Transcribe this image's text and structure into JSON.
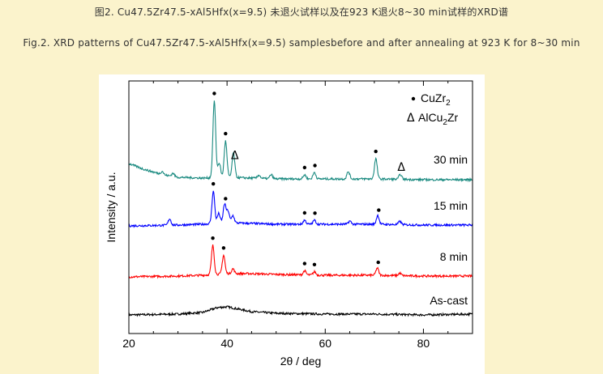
{
  "caption": {
    "cn": "图2. Cu47.5Zr47.5-xAl5Hfx(x=9.5) 未退火试样以及在923 K退火8~30 min试样的XRD谱",
    "en": "Fig.2. XRD patterns of Cu47.5Zr47.5-xAl5Hfx(x=9.5) samplesbefore and after annealing at 923 K for 8~30 min"
  },
  "chart_data": {
    "type": "line",
    "title": "",
    "xlabel": "2θ / deg",
    "ylabel": "Intensity / a.u.",
    "xlim": [
      20,
      90
    ],
    "xticks": [
      20,
      40,
      60,
      80
    ],
    "legend": [
      {
        "marker": "•",
        "label": "CuZr2"
      },
      {
        "marker": "Δ",
        "label": "AlCu2Zr"
      }
    ],
    "series": [
      {
        "name": "As-cast",
        "color": "#000000",
        "offset": 0,
        "base": [
          [
            20,
            5
          ],
          [
            30,
            6
          ],
          [
            35,
            8
          ],
          [
            38,
            14
          ],
          [
            40,
            15
          ],
          [
            45,
            9
          ],
          [
            50,
            7
          ],
          [
            60,
            6
          ],
          [
            70,
            6
          ],
          [
            80,
            5
          ],
          [
            90,
            6
          ]
        ],
        "peaks": [],
        "markers": []
      },
      {
        "name": "8 min",
        "color": "#ff0000",
        "offset": 50,
        "base": [
          [
            20,
            2
          ],
          [
            30,
            3
          ],
          [
            35,
            4
          ],
          [
            40,
            6
          ],
          [
            45,
            6
          ],
          [
            50,
            5
          ],
          [
            60,
            4
          ],
          [
            70,
            4
          ],
          [
            80,
            3
          ],
          [
            90,
            3
          ]
        ],
        "peaks": [
          [
            37.1,
            36
          ],
          [
            39.3,
            23
          ],
          [
            41.2,
            6
          ],
          [
            55.8,
            5
          ],
          [
            57.8,
            4
          ],
          [
            70.6,
            9
          ],
          [
            75.2,
            3
          ]
        ],
        "markers": [
          {
            "x": 37.1,
            "sym": "dot"
          },
          {
            "x": 39.3,
            "sym": "dot"
          },
          {
            "x": 55.8,
            "sym": "dot"
          },
          {
            "x": 57.8,
            "sym": "dot"
          },
          {
            "x": 70.8,
            "sym": "dot"
          }
        ]
      },
      {
        "name": "15 min",
        "color": "#0000ff",
        "offset": 113,
        "base": [
          [
            20,
            2
          ],
          [
            30,
            3
          ],
          [
            35,
            4
          ],
          [
            40,
            6
          ],
          [
            45,
            5
          ],
          [
            50,
            4
          ],
          [
            60,
            4
          ],
          [
            70,
            4
          ],
          [
            80,
            3
          ],
          [
            90,
            3
          ]
        ],
        "peaks": [
          [
            28.3,
            8
          ],
          [
            37.2,
            40
          ],
          [
            38.3,
            12
          ],
          [
            39.5,
            23
          ],
          [
            40.2,
            14
          ],
          [
            41.2,
            9
          ],
          [
            55.8,
            5
          ],
          [
            57.8,
            5
          ],
          [
            65,
            4
          ],
          [
            70.7,
            11
          ],
          [
            75.2,
            4
          ]
        ],
        "markers": [
          {
            "x": 37.2,
            "sym": "dot"
          },
          {
            "x": 39.7,
            "sym": "dot"
          },
          {
            "x": 55.8,
            "sym": "dot"
          },
          {
            "x": 57.9,
            "sym": "dot"
          },
          {
            "x": 70.9,
            "sym": "dot"
          }
        ]
      },
      {
        "name": "30 min",
        "color": "#1a8a80",
        "offset": 170,
        "base": [
          [
            20,
            22
          ],
          [
            23,
            15
          ],
          [
            27,
            8
          ],
          [
            30,
            5
          ],
          [
            35,
            4
          ],
          [
            40,
            5
          ],
          [
            45,
            4
          ],
          [
            50,
            3
          ],
          [
            60,
            3
          ],
          [
            70,
            3
          ],
          [
            80,
            2
          ],
          [
            90,
            2
          ]
        ],
        "peaks": [
          [
            26.8,
            4
          ],
          [
            29,
            4
          ],
          [
            37.4,
            95
          ],
          [
            38.4,
            18
          ],
          [
            39.7,
            45
          ],
          [
            41.3,
            30
          ],
          [
            46.5,
            4
          ],
          [
            49,
            5
          ],
          [
            55.8,
            5
          ],
          [
            57.8,
            8
          ],
          [
            64.7,
            9
          ],
          [
            70.3,
            25
          ],
          [
            75.3,
            6
          ]
        ],
        "markers": [
          {
            "x": 37.4,
            "sym": "dot"
          },
          {
            "x": 39.7,
            "sym": "dot"
          },
          {
            "x": 41.6,
            "sym": "tri"
          },
          {
            "x": 55.8,
            "sym": "dot"
          },
          {
            "x": 57.9,
            "sym": "dot"
          },
          {
            "x": 70.3,
            "sym": "dot"
          },
          {
            "x": 75.5,
            "sym": "tri"
          }
        ]
      }
    ]
  }
}
